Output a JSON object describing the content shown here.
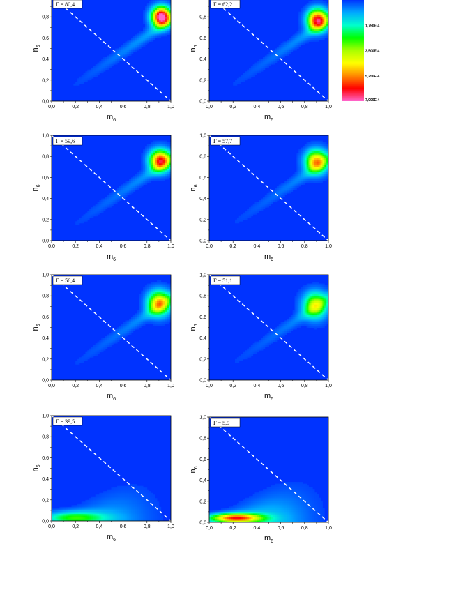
{
  "chart_data": {
    "type": "heatmap",
    "panels": [
      {
        "label": "Γ = 80,4",
        "peak": {
          "x": 0.92,
          "y": 0.8
        },
        "amp": 0.00076,
        "sx": 0.055,
        "sy": 0.065,
        "tail_amp": 0.00012
      },
      {
        "label": "Γ = 62,2",
        "peak": {
          "x": 0.91,
          "y": 0.77
        },
        "amp": 0.00064,
        "sx": 0.06,
        "sy": 0.07,
        "tail_amp": 0.00011
      },
      {
        "label": "Γ = 59,6",
        "peak": {
          "x": 0.91,
          "y": 0.76
        },
        "amp": 0.0006,
        "sx": 0.06,
        "sy": 0.07,
        "tail_amp": 0.00011
      },
      {
        "label": "Γ = 57,7",
        "peak": {
          "x": 0.9,
          "y": 0.75
        },
        "amp": 0.0005,
        "sx": 0.065,
        "sy": 0.075,
        "tail_amp": 0.0001
      },
      {
        "label": "Γ = 56,4",
        "peak": {
          "x": 0.9,
          "y": 0.73
        },
        "amp": 0.00048,
        "sx": 0.065,
        "sy": 0.08,
        "tail_amp": 0.00011
      },
      {
        "label": "Γ = 51,1",
        "peak": {
          "x": 0.89,
          "y": 0.71
        },
        "amp": 0.00038,
        "sx": 0.07,
        "sy": 0.085,
        "tail_amp": 0.0001
      },
      {
        "label": "Γ = 39,5",
        "peak": {
          "x": 0.18,
          "y": 0.03
        },
        "amp": 0.00024,
        "sx": 0.18,
        "sy": 0.04,
        "tail_amp": 9e-05
      },
      {
        "label": "Γ = 5,9",
        "peak": {
          "x": 0.22,
          "y": 0.04
        },
        "amp": 0.00054,
        "sx": 0.15,
        "sy": 0.03,
        "tail_amp": 0.00013
      }
    ],
    "x_label": "m",
    "x_label_sub": "6",
    "y_label": "n",
    "y_label_sub": "6",
    "x_ticks": [
      "0,0",
      "0,2",
      "0,4",
      "0,6",
      "0,8",
      "1,0"
    ],
    "y_ticks": [
      "0,0",
      "0,2",
      "0,4",
      "0,6",
      "0,8",
      "1,0"
    ],
    "xlim": [
      0,
      1
    ],
    "ylim": [
      0,
      1
    ],
    "diagonal_line": {
      "from": [
        0,
        1
      ],
      "to": [
        1,
        0
      ],
      "style": "dashed",
      "color": "#ffffff"
    },
    "colorbar": {
      "min": 0,
      "max": 0.0007,
      "tick_labels": [
        "1,750E-4",
        "3,500E-4",
        "5,250E-4",
        "7,000E-4"
      ],
      "tick_values": [
        0.000175,
        0.00035,
        0.000525,
        0.0007
      ],
      "colors": [
        "#0033ff",
        "#00aaff",
        "#00ffcc",
        "#00ff00",
        "#aaff00",
        "#ffff00",
        "#ff8800",
        "#ff0000",
        "#ff66cc"
      ]
    }
  }
}
